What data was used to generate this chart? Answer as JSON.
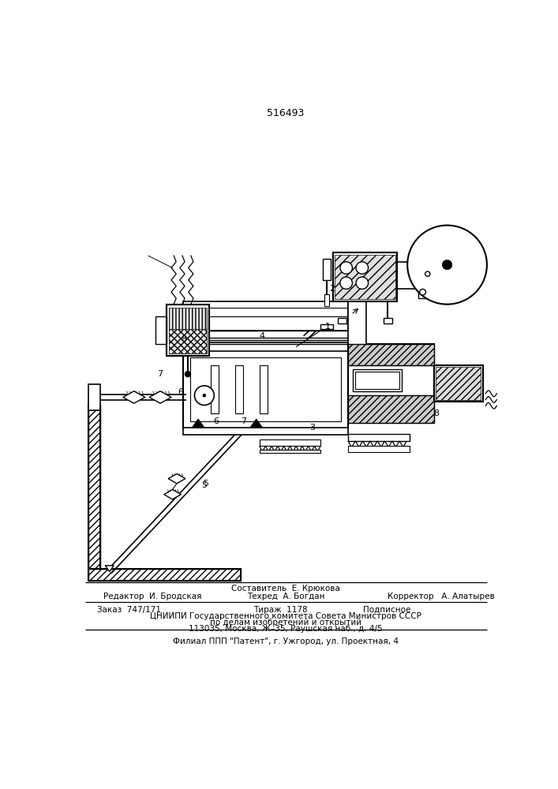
{
  "patent_number": "516493",
  "bg_color": "#ffffff",
  "footer_line1_center_top": "Составитель  Е. Крюкова",
  "footer_line1_left": "Редактор  И. Бродская",
  "footer_line1_center": "Техред  А. Богдан",
  "footer_line1_right": "Корректор   А. Алатырев",
  "footer_line2_left": "Заказ  747/171",
  "footer_line2_center": "Тираж  1178",
  "footer_line2_right": "Подписное",
  "footer_line3": "ЦНИИПИ Государственного комитета Совета Министров СССР",
  "footer_line4": "по делам изобретений и открытий",
  "footer_line5": "113035, Москва, Ж–35, Раушская наб., д. 4/5",
  "footer_bottom": "Филиал ППП \"Патент\", г. Ужгород, ул. Проектная, 4"
}
